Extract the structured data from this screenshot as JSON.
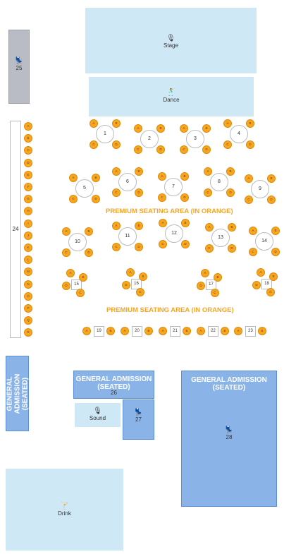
{
  "colors": {
    "light_zone": "#cfe8f6",
    "general_zone": "#8ab4e8",
    "gray_zone": "#b9bcc4",
    "seat": "#f6a623",
    "premium_text": "#f6a623"
  },
  "stage": {
    "label": "Stage",
    "icon": "microphone-icon"
  },
  "dance": {
    "label": "Dance",
    "icon": "dancer-icon"
  },
  "sound": {
    "label": "Sound",
    "icon": "microphone-icon"
  },
  "drink": {
    "label": "Drink",
    "icon": "cocktail-icon"
  },
  "section_25": {
    "label": "25",
    "icon": "chair-icon"
  },
  "section_24": {
    "label": "24",
    "rows": [
      "A",
      "B",
      "C",
      "D",
      "E",
      "F",
      "G",
      "H",
      "I",
      "J",
      "K",
      "L",
      "M",
      "N",
      "O",
      "P",
      "Q",
      "R"
    ]
  },
  "ga_left": {
    "label": "GENERAL ADMISSION (SEATED)"
  },
  "ga_mid": {
    "label": "GENERAL ADMISSION (SEATED)",
    "number": "26"
  },
  "ga_right": {
    "label": "GENERAL ADMISSION (SEATED)",
    "number": "28",
    "icon": "chair-icon"
  },
  "section_27": {
    "label": "27",
    "icon": "chair-icon"
  },
  "premium_labels": [
    "PREMIUM SEATING AREA (IN ORANGE)",
    "PREMIUM SEATING AREA (IN ORANGE)"
  ],
  "round_tables": [
    {
      "label": "1"
    },
    {
      "label": "2"
    },
    {
      "label": "3"
    },
    {
      "label": "4"
    },
    {
      "label": "5"
    },
    {
      "label": "6"
    },
    {
      "label": "7"
    },
    {
      "label": "8"
    },
    {
      "label": "9"
    },
    {
      "label": "10"
    },
    {
      "label": "11"
    },
    {
      "label": "12"
    },
    {
      "label": "13"
    },
    {
      "label": "14"
    }
  ],
  "square_tables": [
    {
      "label": "15"
    },
    {
      "label": "16"
    },
    {
      "label": "17"
    },
    {
      "label": "18"
    }
  ],
  "bar_tables": [
    {
      "label": "19"
    },
    {
      "label": "20"
    },
    {
      "label": "21"
    },
    {
      "label": "22"
    },
    {
      "label": "23"
    }
  ],
  "seat_letters": [
    "A",
    "B",
    "C",
    "D",
    "E",
    "F"
  ],
  "bar_seat_letters": [
    "A",
    "B"
  ]
}
